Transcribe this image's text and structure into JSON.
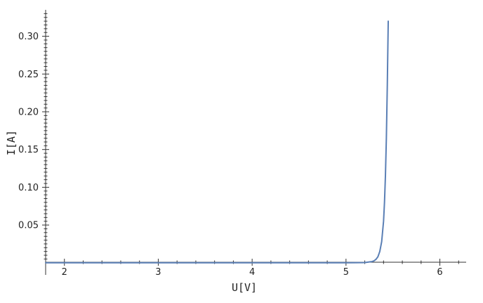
{
  "chart_data": {
    "type": "line",
    "title": "",
    "xlabel": "U[V]",
    "ylabel": "I[A]",
    "xlim": [
      1.8,
      6.28
    ],
    "ylim": [
      -0.003,
      0.335
    ],
    "x_ticks": [
      2,
      3,
      4,
      5,
      6
    ],
    "x_tick_labels": [
      "2",
      "3",
      "4",
      "5",
      "6"
    ],
    "y_ticks": [
      0.05,
      0.1,
      0.15,
      0.2,
      0.25,
      0.3
    ],
    "y_tick_labels": [
      "0.05",
      "0.10",
      "0.15",
      "0.20",
      "0.25",
      "0.30"
    ],
    "grid": false,
    "series": [
      {
        "color": "#5a7fb5",
        "x": [
          1.8,
          2.5,
          3.0,
          3.5,
          4.0,
          4.5,
          5.0,
          5.2,
          5.28,
          5.3,
          5.32,
          5.34,
          5.36,
          5.38,
          5.4,
          5.41,
          5.42,
          5.43,
          5.44,
          5.45
        ],
        "y": [
          0.0,
          0.0,
          0.0,
          0.0,
          0.0,
          0.0,
          0.0,
          0.0003,
          0.0017,
          0.0027,
          0.0046,
          0.008,
          0.015,
          0.028,
          0.055,
          0.08,
          0.115,
          0.165,
          0.235,
          0.32
        ]
      }
    ]
  }
}
